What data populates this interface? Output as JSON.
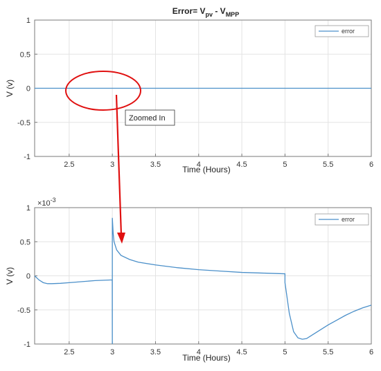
{
  "figure": {
    "title_main": "Error= V",
    "title_sub1": "pv",
    "title_mid": " - V",
    "title_sub2": "MPP",
    "annotation": "Zoomed In",
    "exponent_base": "×10",
    "exponent_power": "-3",
    "colors": {
      "series": "#4a8fc9",
      "annotation_arrow": "#e01010",
      "grid": "#e3e3e3",
      "axis": "#7a7a7a"
    }
  },
  "chart_data": [
    {
      "type": "line",
      "title": "Error= Vpv - VMPP",
      "xlabel": "Time (Hours)",
      "ylabel": "V (v)",
      "xlim": [
        2.1,
        6
      ],
      "ylim": [
        -1,
        1
      ],
      "xticks": [
        "2.5",
        "3",
        "3.5",
        "4",
        "4.5",
        "5",
        "5.5",
        "6"
      ],
      "yticks": [
        "1",
        "0.5",
        "0",
        "-0.5",
        "-1"
      ],
      "grid": true,
      "legend": "top-right",
      "series": [
        {
          "name": "error",
          "x": [
            2.1,
            6
          ],
          "y": [
            0,
            0
          ]
        }
      ]
    },
    {
      "type": "line",
      "xlabel": "Time (Hours)",
      "ylabel": "V (v)",
      "y_scale_factor": "×10^-3",
      "xlim": [
        2.1,
        6
      ],
      "ylim": [
        -1,
        1
      ],
      "xticks": [
        "2.5",
        "3",
        "3.5",
        "4",
        "4.5",
        "5",
        "5.5",
        "6"
      ],
      "yticks": [
        "1",
        "0.5",
        "0",
        "-0.5",
        "-1"
      ],
      "grid": true,
      "legend": "top-right",
      "series": [
        {
          "name": "error",
          "x": [
            2.1,
            2.15,
            2.2,
            2.25,
            2.3,
            2.4,
            2.5,
            2.6,
            2.7,
            2.8,
            2.9,
            2.999,
            3.0,
            3.0,
            3.0,
            3.01,
            3.02,
            3.05,
            3.1,
            3.2,
            3.3,
            3.5,
            3.75,
            4.0,
            4.25,
            4.5,
            4.75,
            4.999,
            5.0,
            5.0,
            5.05,
            5.1,
            5.15,
            5.2,
            5.25,
            5.3,
            5.4,
            5.5,
            5.6,
            5.7,
            5.8,
            5.9,
            6.0
          ],
          "y": [
            0,
            -0.06,
            -0.1,
            -0.115,
            -0.115,
            -0.11,
            -0.1,
            -0.09,
            -0.08,
            -0.07,
            -0.065,
            -0.06,
            -1.0,
            -1.0,
            0.85,
            0.62,
            0.5,
            0.38,
            0.3,
            0.24,
            0.2,
            0.16,
            0.12,
            0.09,
            0.07,
            0.05,
            0.04,
            0.03,
            0.03,
            -0.1,
            -0.55,
            -0.82,
            -0.91,
            -0.93,
            -0.92,
            -0.88,
            -0.8,
            -0.72,
            -0.65,
            -0.58,
            -0.52,
            -0.47,
            -0.43
          ]
        }
      ]
    }
  ]
}
